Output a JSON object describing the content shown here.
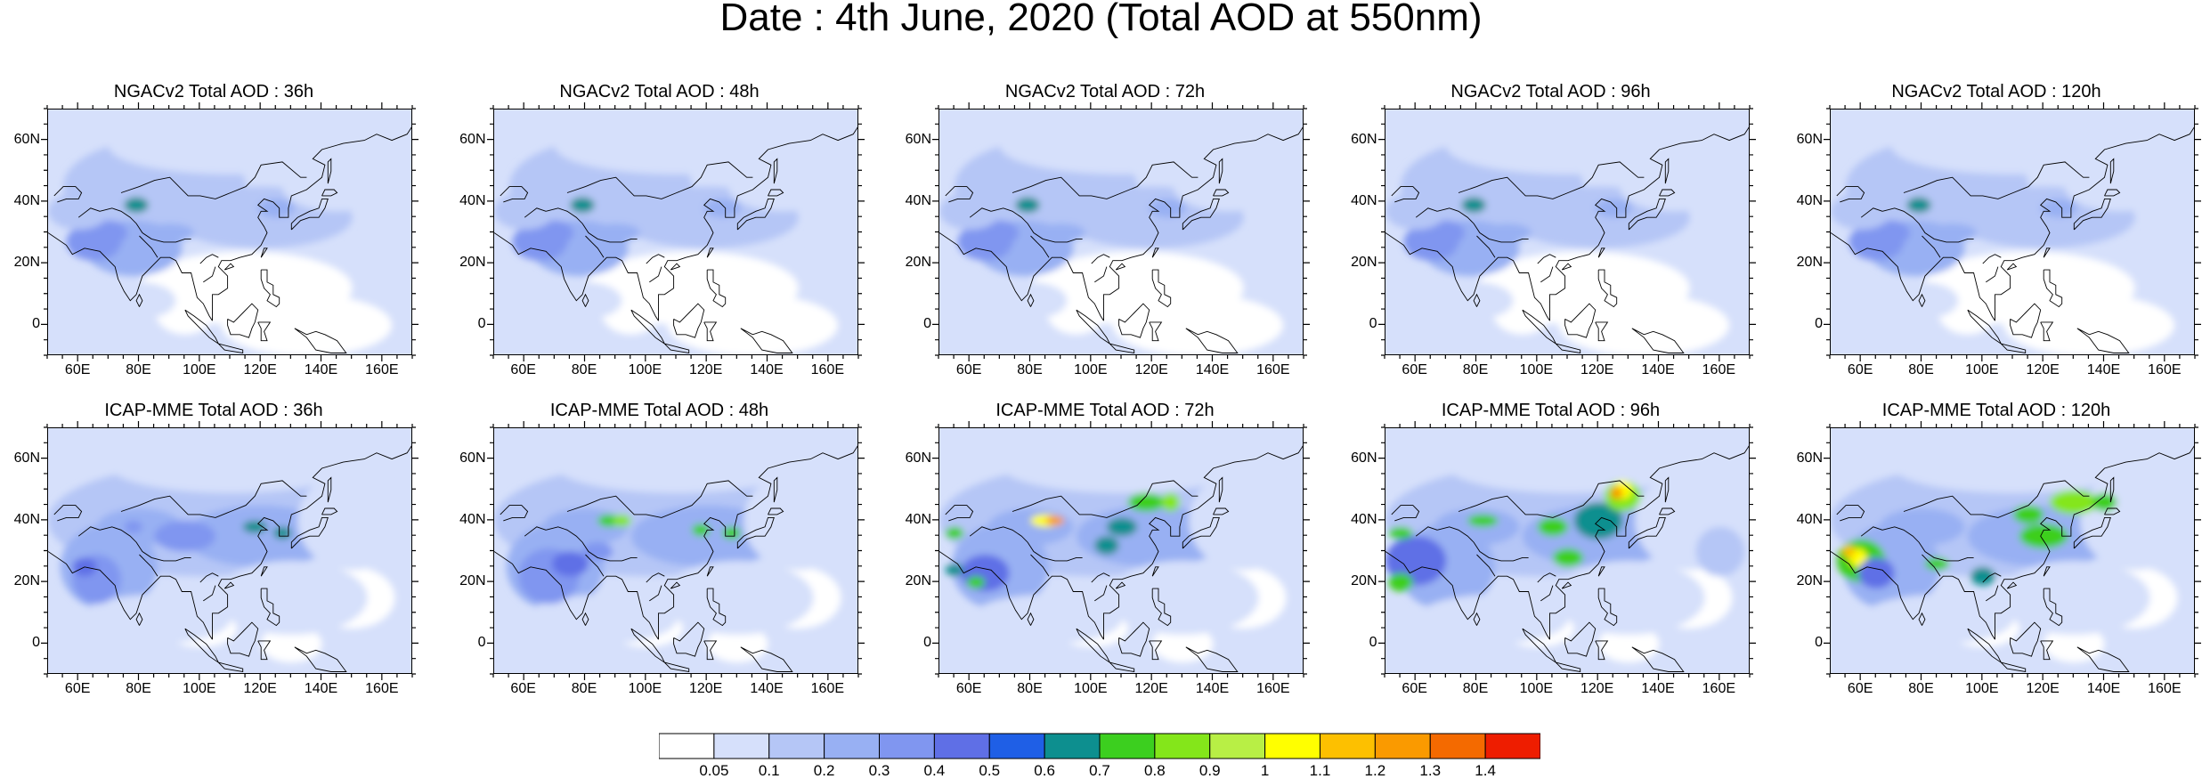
{
  "title": "Date : 4th June, 2020 (Total AOD at 550nm)",
  "axes": {
    "xticks": [
      "60E",
      "80E",
      "100E",
      "120E",
      "140E",
      "160E"
    ],
    "xtick_values": [
      60,
      80,
      100,
      120,
      140,
      160
    ],
    "yticks": [
      "60N",
      "40N",
      "20N",
      "0"
    ],
    "ytick_values": [
      60,
      40,
      20,
      0
    ],
    "lon_range": [
      50,
      170
    ],
    "lat_range": [
      -10,
      70
    ]
  },
  "panels": [
    {
      "title": "NGACv2 Total AOD : 36h",
      "model": "NGACv2",
      "lead": 36
    },
    {
      "title": "NGACv2 Total AOD : 48h",
      "model": "NGACv2",
      "lead": 48
    },
    {
      "title": "NGACv2 Total AOD : 72h",
      "model": "NGACv2",
      "lead": 72
    },
    {
      "title": "NGACv2 Total AOD : 96h",
      "model": "NGACv2",
      "lead": 96
    },
    {
      "title": "NGACv2 Total AOD : 120h",
      "model": "NGACv2",
      "lead": 120
    },
    {
      "title": "ICAP-MME Total AOD : 36h",
      "model": "ICAP-MME",
      "lead": 36
    },
    {
      "title": "ICAP-MME Total AOD : 48h",
      "model": "ICAP-MME",
      "lead": 48
    },
    {
      "title": "ICAP-MME Total AOD : 72h",
      "model": "ICAP-MME",
      "lead": 72
    },
    {
      "title": "ICAP-MME Total AOD : 96h",
      "model": "ICAP-MME",
      "lead": 96
    },
    {
      "title": "ICAP-MME Total AOD : 120h",
      "model": "ICAP-MME",
      "lead": 120
    }
  ],
  "colorbar": {
    "labels": [
      "0.05",
      "0.1",
      "0.2",
      "0.3",
      "0.4",
      "0.5",
      "0.6",
      "0.7",
      "0.8",
      "0.9",
      "1",
      "1.1",
      "1.2",
      "1.3",
      "1.4"
    ],
    "colors": [
      "#ffffff",
      "#d6e0fb",
      "#b5c6f6",
      "#98b0f3",
      "#8096f0",
      "#5f6fe6",
      "#1f5fe6",
      "#0d8f8f",
      "#3ccf1f",
      "#84e61a",
      "#b8ef45",
      "#ffff00",
      "#fdc000",
      "#fa9a00",
      "#f46a00",
      "#ee1d00"
    ]
  }
}
